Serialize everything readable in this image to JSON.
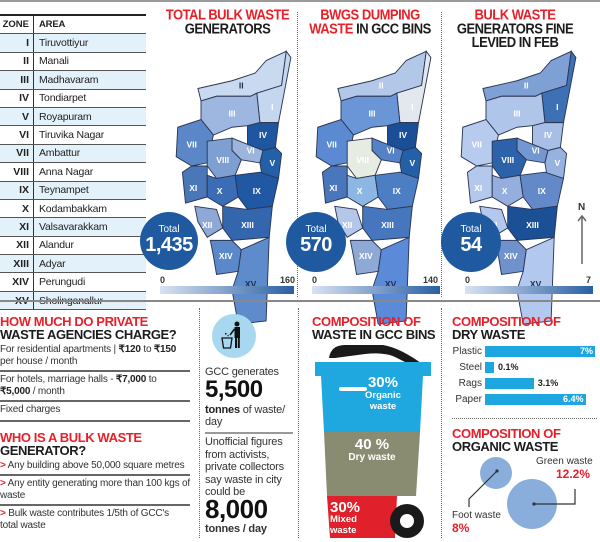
{
  "zone_table": {
    "headers": [
      "ZONE",
      "AREA"
    ],
    "rows": [
      {
        "zone": "I",
        "area": "Tiruvottiyur"
      },
      {
        "zone": "II",
        "area": "Manali"
      },
      {
        "zone": "III",
        "area": "Madhavaram"
      },
      {
        "zone": "IV",
        "area": "Tondiarpet"
      },
      {
        "zone": "V",
        "area": "Royapuram"
      },
      {
        "zone": "VI",
        "area": "Tiruvika Nagar"
      },
      {
        "zone": "VII",
        "area": "Ambattur"
      },
      {
        "zone": "VIII",
        "area": "Anna Nagar"
      },
      {
        "zone": "IX",
        "area": "Teynampet"
      },
      {
        "zone": "X",
        "area": "Kodambakkam"
      },
      {
        "zone": "XI",
        "area": "Valsavarakkam"
      },
      {
        "zone": "XII",
        "area": "Alandur"
      },
      {
        "zone": "XIII",
        "area": "Adyar"
      },
      {
        "zone": "XIV",
        "area": "Perungudi"
      },
      {
        "zone": "XV",
        "area": "Sholinganallur"
      }
    ]
  },
  "maps": [
    {
      "title_red": "TOTAL BULK WASTE",
      "title_dark": "GENERATORS",
      "total_label": "Total",
      "total_value": "1,435",
      "legend_min": "0",
      "legend_max": "160",
      "zone_colors": {
        "I": "#c5d6ef",
        "II": "#c9d9f0",
        "III": "#9db7e0",
        "IV": "#1f56a0",
        "V": "#2460a8",
        "VI": "#9cb5dd",
        "VII": "#5b87c8",
        "VIII": "#7d9fd2",
        "IX": "#2058a3",
        "X": "#3a6db5",
        "XI": "#4a77b8",
        "XII": "#8fa9d6",
        "XIII": "#3466ae",
        "XIV": "#5b88c8",
        "XV": "#5e8bcc"
      }
    },
    {
      "title_red": "BWGS DUMPING",
      "title_red2": "WASTE",
      "title_dark": "IN GCC BINS",
      "total_label": "Total",
      "total_value": "570",
      "legend_min": "0",
      "legend_max": "140",
      "zone_colors": {
        "I": "#e3e8ef",
        "II": "#b3c8e9",
        "III": "#6a95d6",
        "IV": "#1a4f97",
        "V": "#2460a8",
        "VI": "#5582c6",
        "VII": "#5b8ad2",
        "VIII": "#e6ece2",
        "IX": "#4c7ec4",
        "X": "#8db7e3",
        "XI": "#4a77bb",
        "XII": "#b5c7e8",
        "XIII": "#4676bd",
        "XIV": "#8fa9d6",
        "XV": "#5b8ad8"
      }
    },
    {
      "title_red": "BULK WASTE",
      "title_dark": "GENERATORS FINE",
      "title_dark2": "LEVIED IN FEB",
      "total_label": "Total",
      "total_value": "54",
      "legend_min": "0",
      "legend_max": "7",
      "north_label": "N",
      "zone_colors": {
        "I": "#3e70b6",
        "II": "#7ea0d4",
        "III": "#b0c5ea",
        "IV": "#a8bee6",
        "V": "#98b2df",
        "VI": "#7397d0",
        "VII": "#b6cbee",
        "VIII": "#2c62aa",
        "IX": "#6389c8",
        "X": "#94aedd",
        "XI": "#b3c8ec",
        "XII": "#b3c8ec",
        "XIII": "#1b4f96",
        "XIV": "#6f92cc",
        "XV": "#b3c8ee"
      }
    }
  ],
  "private_charges": {
    "title_red": "HOW MUCH DO PRIVATE",
    "title_dark": "WASTE AGENCIES CHARGE?",
    "items": [
      {
        "pre": "For residential apartments | ",
        "bold": "₹120",
        "mid": " to ",
        "bold2": "₹150",
        "post": " per house / month"
      },
      {
        "pre": "For hotels, marriage halls - ",
        "bold": "₹7,000",
        "mid": " to ",
        "bold2": "₹5,000",
        "post": " / month"
      },
      {
        "pre": "Fixed charges"
      }
    ]
  },
  "bulk_generator": {
    "title_red": "WHO IS A BULK WASTE",
    "title_dark": "GENERATOR?",
    "arrow": ">",
    "items": [
      "Any building above 50,000 square metres",
      "Any entity generating more than 100 kgs of waste",
      "Bulk waste contributes 1/5th of GCC's total waste"
    ]
  },
  "gcc_stats": {
    "icon": "litter-bin-person-icon",
    "generates_label": "GCC generates",
    "generates_value": "5,500",
    "generates_unit_bold": "tonnes",
    "generates_unit": " of waste/ day",
    "unofficial_text": "Unofficial figures from activists, private collectors say  waste in city could be",
    "unofficial_value": "8,000",
    "unofficial_unit": "tonnes / day"
  },
  "bin_composition": {
    "title_red": "COMPOSITION OF",
    "title_dark": "WASTE IN GCC BINS",
    "segments": [
      {
        "pct": "30%",
        "label1": "Organic",
        "label2": "waste",
        "color": "#1fa8e0"
      },
      {
        "pct": "40 %",
        "label1": "Dry waste",
        "color": "#8a8c72"
      },
      {
        "pct": "30%",
        "label1": "Mixed",
        "label2": "waste",
        "color": "#e0202a"
      }
    ]
  },
  "dry_waste": {
    "title_red": "COMPOSITION OF",
    "title_dark": "DRY WASTE",
    "bar_color": "#1da6e0"
  },
  "organic_waste": {
    "title_red": "COMPOSITION OF",
    "title_dark": "ORGANIC WASTE",
    "items": [
      {
        "label": "Green waste",
        "value": "12.2%"
      },
      {
        "label": "Foot waste",
        "value": "8%"
      }
    ]
  },
  "chart_data": [
    {
      "type": "bar",
      "title": "Composition of Dry Waste",
      "categories": [
        "Plastic",
        "Steel",
        "Rags",
        "Paper"
      ],
      "values": [
        7,
        0.1,
        3.1,
        6.4
      ],
      "labels": [
        "7%",
        "0.1%",
        "3.1%",
        "6.4%"
      ],
      "orientation": "horizontal",
      "xlabel": "",
      "ylabel": ""
    },
    {
      "type": "bar",
      "title": "Composition of Waste in GCC Bins",
      "categories": [
        "Organic waste",
        "Dry waste",
        "Mixed waste"
      ],
      "values": [
        30,
        40,
        30
      ],
      "labels": [
        "30%",
        "40 %",
        "30%"
      ]
    },
    {
      "type": "scatter",
      "title": "Composition of Organic Waste",
      "categories": [
        "Green waste",
        "Foot waste"
      ],
      "values": [
        12.2,
        8
      ],
      "labels": [
        "12.2%",
        "8%"
      ]
    }
  ]
}
